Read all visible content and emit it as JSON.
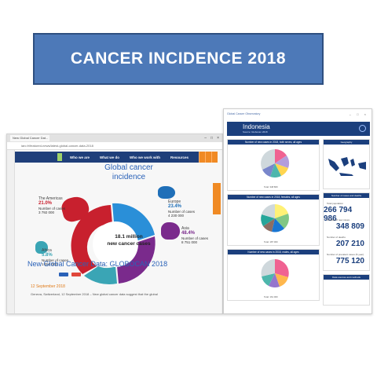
{
  "banner": {
    "title": "CANCER INCIDENCE 2018"
  },
  "browser": {
    "tab_label": "New Global Cancer Dat...",
    "url": "iarc.fr/featured-news/latest-global-cancer-data-2018",
    "win_controls": [
      "–",
      "□",
      "×"
    ],
    "nav": [
      "Who we are",
      "What we do",
      "Who we work with",
      "Resources"
    ],
    "colors": {
      "navbar": "#1f3f7a",
      "accent": "#f08a24",
      "title": "#2a62b8"
    }
  },
  "infographic": {
    "title_line1": "Global cancer",
    "title_line2": "incidence",
    "center_line1": "18.1 million",
    "center_line2": "new cancer cases",
    "regions": [
      {
        "name": "The Americas",
        "pct": "21.0%",
        "cases_label": "Number of cases",
        "cases": "3 792 000",
        "color": "#c8202e"
      },
      {
        "name": "Europe",
        "pct": "23.4%",
        "cases_label": "Number of cases",
        "cases": "4 230 000",
        "color": "#1f6fb8"
      },
      {
        "name": "Asia",
        "pct": "48.4%",
        "cases_label": "Number of cases",
        "cases": "8 751 000",
        "color": "#7a2a8c"
      },
      {
        "name": "Africa",
        "pct": "5.8%",
        "cases_label": "Number of cases",
        "cases": "1 055 000",
        "color": "#3aa5b5"
      }
    ]
  },
  "news": {
    "title": "New Global Cancer Data: GLOBOCAN 2018",
    "date": "12 September 2018",
    "text": "Geneva, Switzerland, 12 September 2018 – New global cancer data suggest that the global"
  },
  "factsheet": {
    "top_label": "Global Cancer Observatory",
    "top_controls": "– □ ×",
    "country": "Indonesia",
    "subtitle": "Source: Globocan 2018",
    "panels": [
      {
        "bar": "Number of new cases in 2018, both sexes, all ages",
        "total_label": "Total: 348 809"
      },
      {
        "bar": "Number of new cases in 2018, females, all ages",
        "total_label": "Total: 187 000"
      },
      {
        "bar": "Number of new cases in 2018, males, all ages",
        "total_label": "Total: 161 000"
      }
    ],
    "side": {
      "map_bar": "Geography",
      "stats_bar": "Number of cases and deaths",
      "stats": [
        {
          "label": "Total population",
          "value": "266 794 986"
        },
        {
          "label": "Number of new cases",
          "value": "348 809"
        },
        {
          "label": "Number of deaths",
          "value": "207 210"
        },
        {
          "label": "Number of prevalent cases (5-year)",
          "value": "775 120"
        }
      ],
      "sources_bar": "Data sources and methods"
    }
  }
}
